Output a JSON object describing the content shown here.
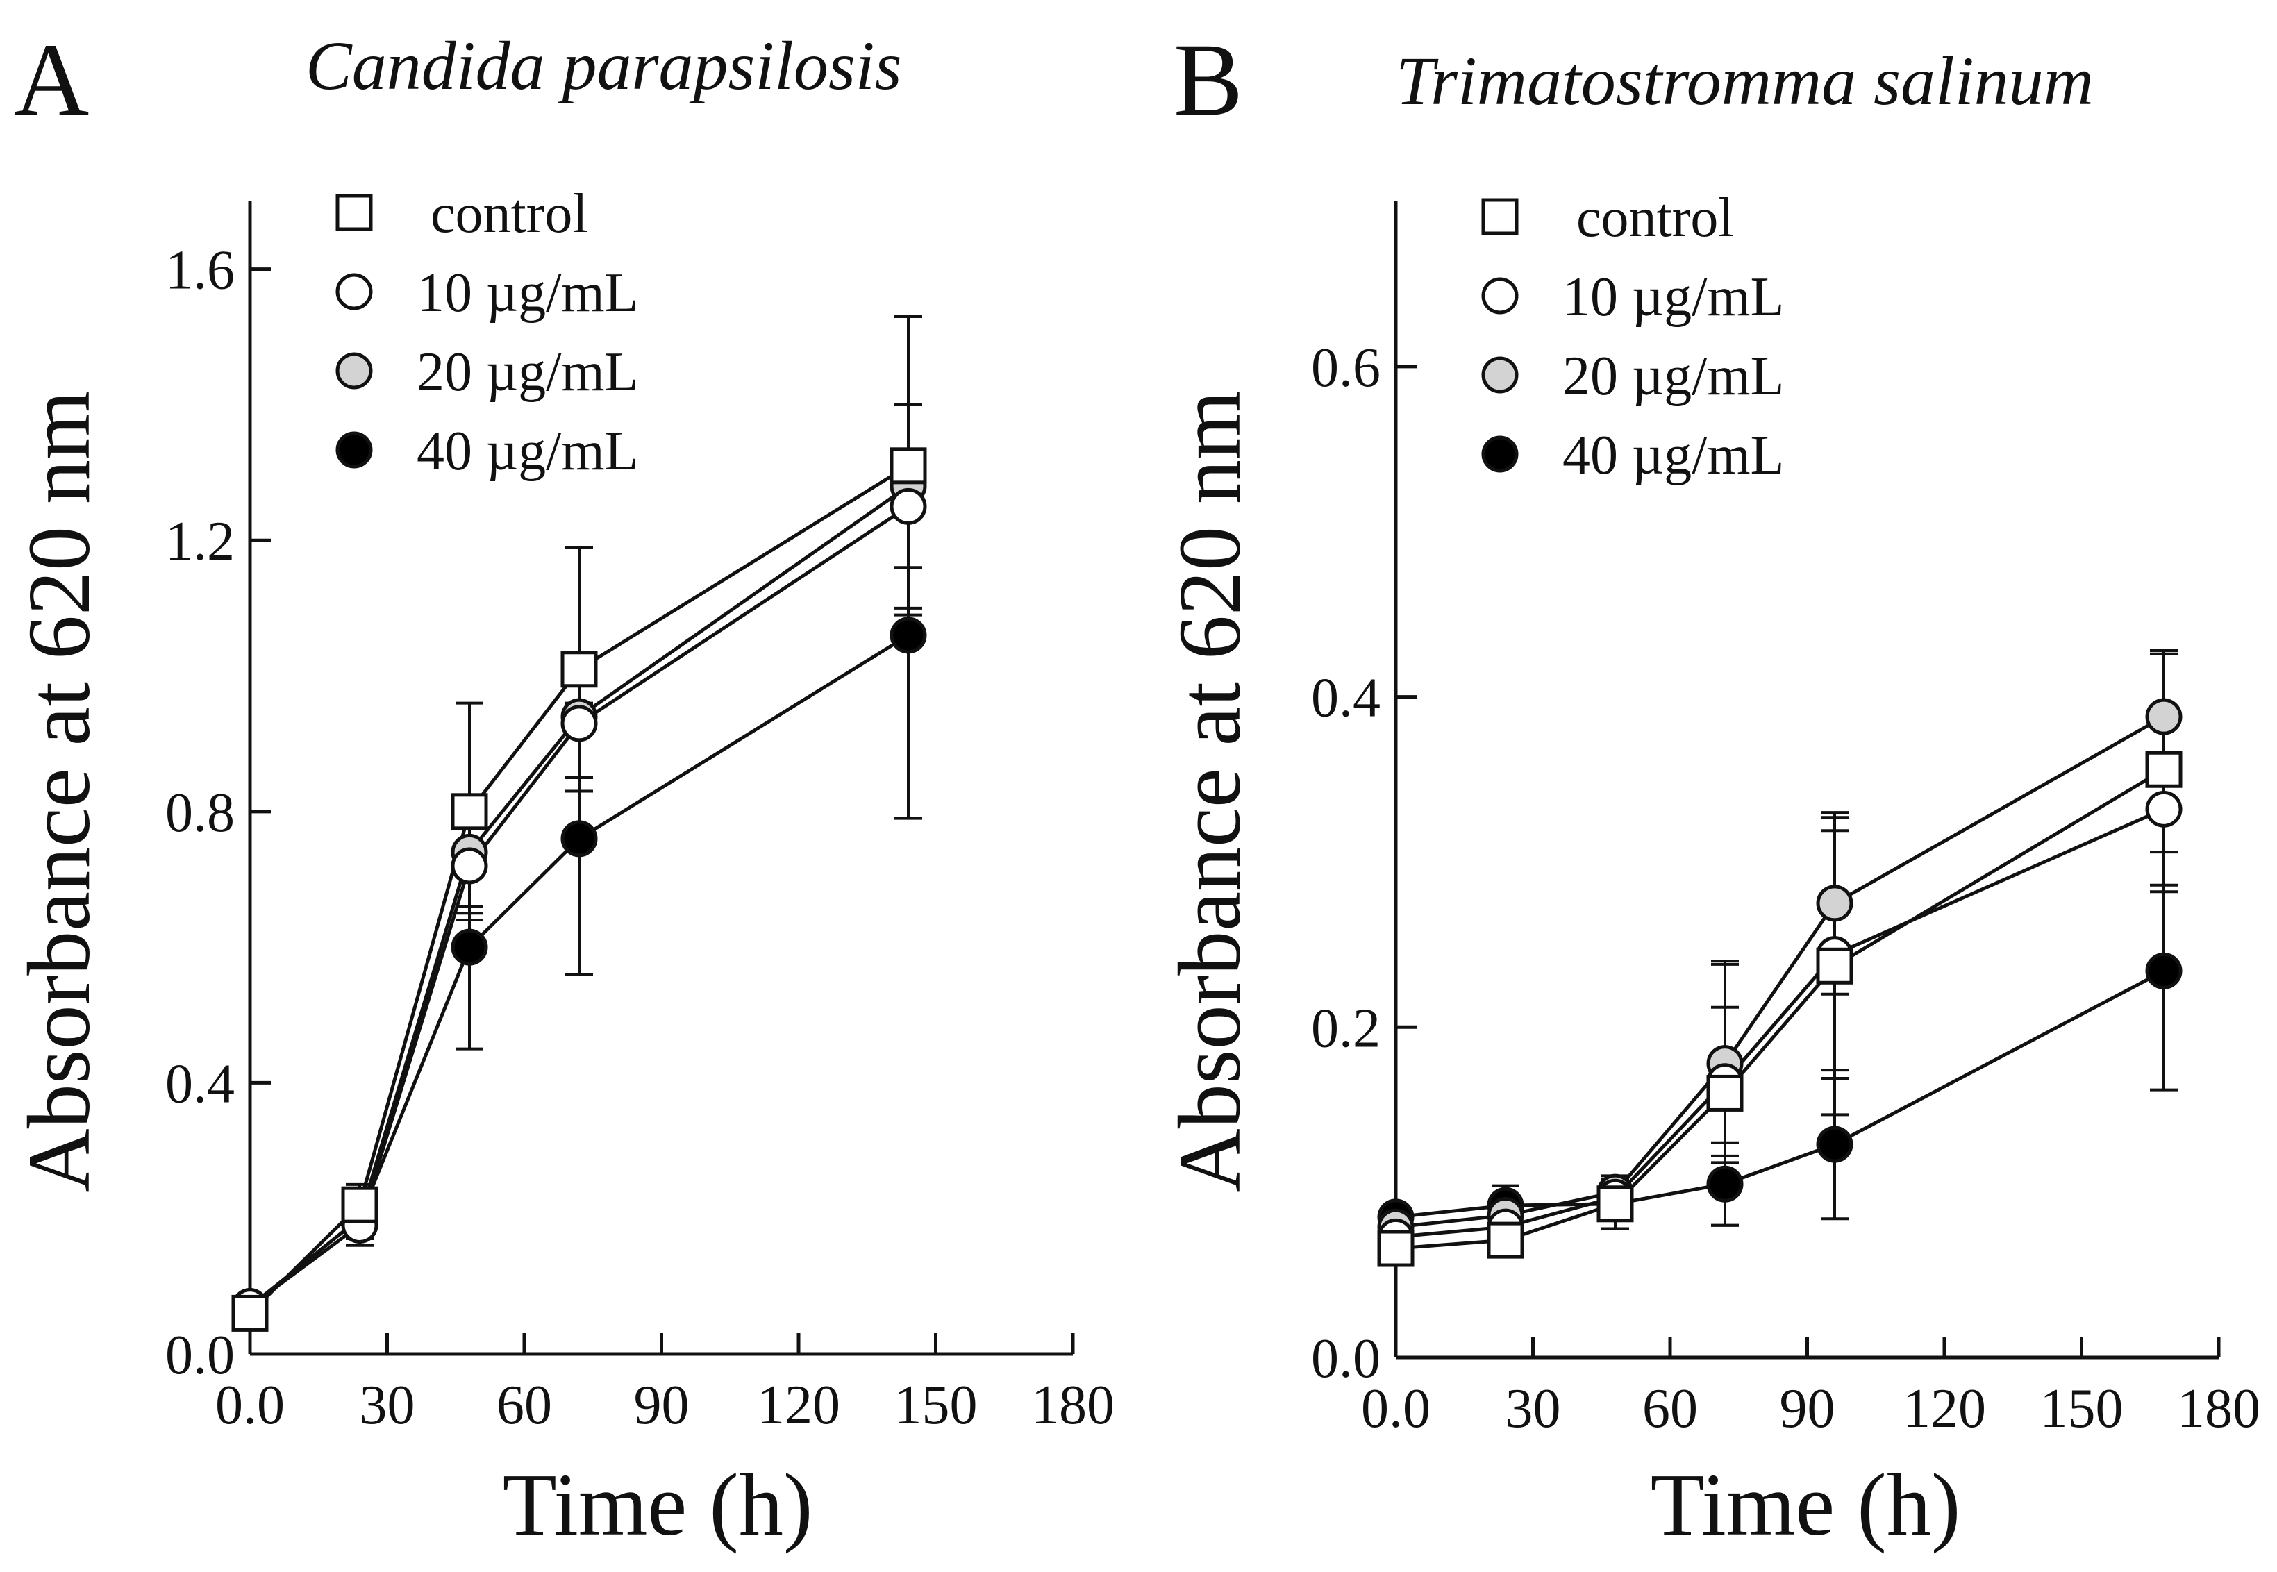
{
  "colors": {
    "control": "#ffffff",
    "10 µg/mL": "#ffffff",
    "20 µg/mL": "#d3d3d3",
    "40 µg/mL": "#000000",
    "stroke": "#111111"
  },
  "chart_data": [
    {
      "type": "line",
      "panel_letter": "A",
      "title": "Candida parapsilosis",
      "xlabel": "Time (h)",
      "ylabel": "Absorbance at 620 nm",
      "xlim": [
        0,
        180
      ],
      "ylim": [
        0,
        1.7
      ],
      "xticks": [
        0,
        30,
        60,
        90,
        120,
        150,
        180
      ],
      "xtick_labels": [
        "0.0",
        "30",
        "60",
        "90",
        "120",
        "150",
        "180"
      ],
      "yticks": [
        0,
        0.4,
        0.8,
        1.2,
        1.6
      ],
      "ytick_labels": [
        "0.0",
        "0.4",
        "0.8",
        "1.2",
        "1.6"
      ],
      "legend_position": "top-left",
      "x": [
        0,
        24,
        48,
        72,
        144
      ],
      "series": [
        {
          "name": "control",
          "marker": "square",
          "fill": "#ffffff",
          "values": [
            0.06,
            0.22,
            0.8,
            1.01,
            1.31
          ],
          "errors": [
            0.01,
            0.03,
            0.16,
            0.18,
            0.22
          ]
        },
        {
          "name": "10 µg/mL",
          "marker": "circle",
          "fill": "#ffffff",
          "values": [
            0.07,
            0.19,
            0.72,
            0.93,
            1.25
          ],
          "errors": [
            0.01,
            0.03,
            0.07,
            0.08,
            0.15
          ]
        },
        {
          "name": "20 µg/mL",
          "marker": "circle",
          "fill": "#d3d3d3",
          "values": [
            0.07,
            0.2,
            0.74,
            0.94,
            1.28
          ],
          "errors": [
            0.01,
            0.03,
            0.08,
            0.09,
            0.12
          ]
        },
        {
          "name": "40 µg/mL",
          "marker": "circle",
          "fill": "#000000",
          "values": [
            0.07,
            0.2,
            0.6,
            0.76,
            1.06
          ],
          "errors": [
            0.01,
            0.03,
            0.15,
            0.2,
            0.27
          ]
        }
      ]
    },
    {
      "type": "line",
      "panel_letter": "B",
      "title": "Trimatostromma salinum",
      "xlabel": "Time (h)",
      "ylabel": "Absorbance at 620 nm",
      "xlim": [
        0,
        180
      ],
      "ylim": [
        0,
        0.7
      ],
      "xticks": [
        0,
        30,
        60,
        90,
        120,
        150,
        180
      ],
      "xtick_labels": [
        "0.0",
        "30",
        "60",
        "90",
        "120",
        "150",
        "180"
      ],
      "yticks": [
        0,
        0.2,
        0.4,
        0.6
      ],
      "ytick_labels": [
        "0.0",
        "0.2",
        "0.4",
        "0.6"
      ],
      "legend_position": "top-left",
      "x": [
        0,
        24,
        48,
        72,
        96,
        168
      ],
      "series": [
        {
          "name": "control",
          "marker": "square",
          "fill": "#ffffff",
          "values": [
            0.066,
            0.071,
            0.093,
            0.16,
            0.237,
            0.356
          ],
          "errors": [
            0.005,
            0.006,
            0.01,
            0.08,
            0.09,
            0.07
          ]
        },
        {
          "name": "10 µg/mL",
          "marker": "circle",
          "fill": "#ffffff",
          "values": [
            0.073,
            0.079,
            0.097,
            0.167,
            0.244,
            0.332
          ],
          "errors": [
            0.005,
            0.006,
            0.01,
            0.045,
            0.075,
            0.05
          ]
        },
        {
          "name": "20 µg/mL",
          "marker": "circle",
          "fill": "#d3d3d3",
          "values": [
            0.079,
            0.086,
            0.1,
            0.178,
            0.275,
            0.388
          ],
          "errors": [
            0.005,
            0.006,
            0.01,
            0.06,
            0.055,
            0.04
          ]
        },
        {
          "name": "40 µg/mL",
          "marker": "circle",
          "fill": "#000000",
          "values": [
            0.085,
            0.092,
            0.093,
            0.105,
            0.129,
            0.234
          ],
          "errors": [
            0.005,
            0.012,
            0.015,
            0.025,
            0.045,
            0.072
          ]
        }
      ]
    }
  ]
}
